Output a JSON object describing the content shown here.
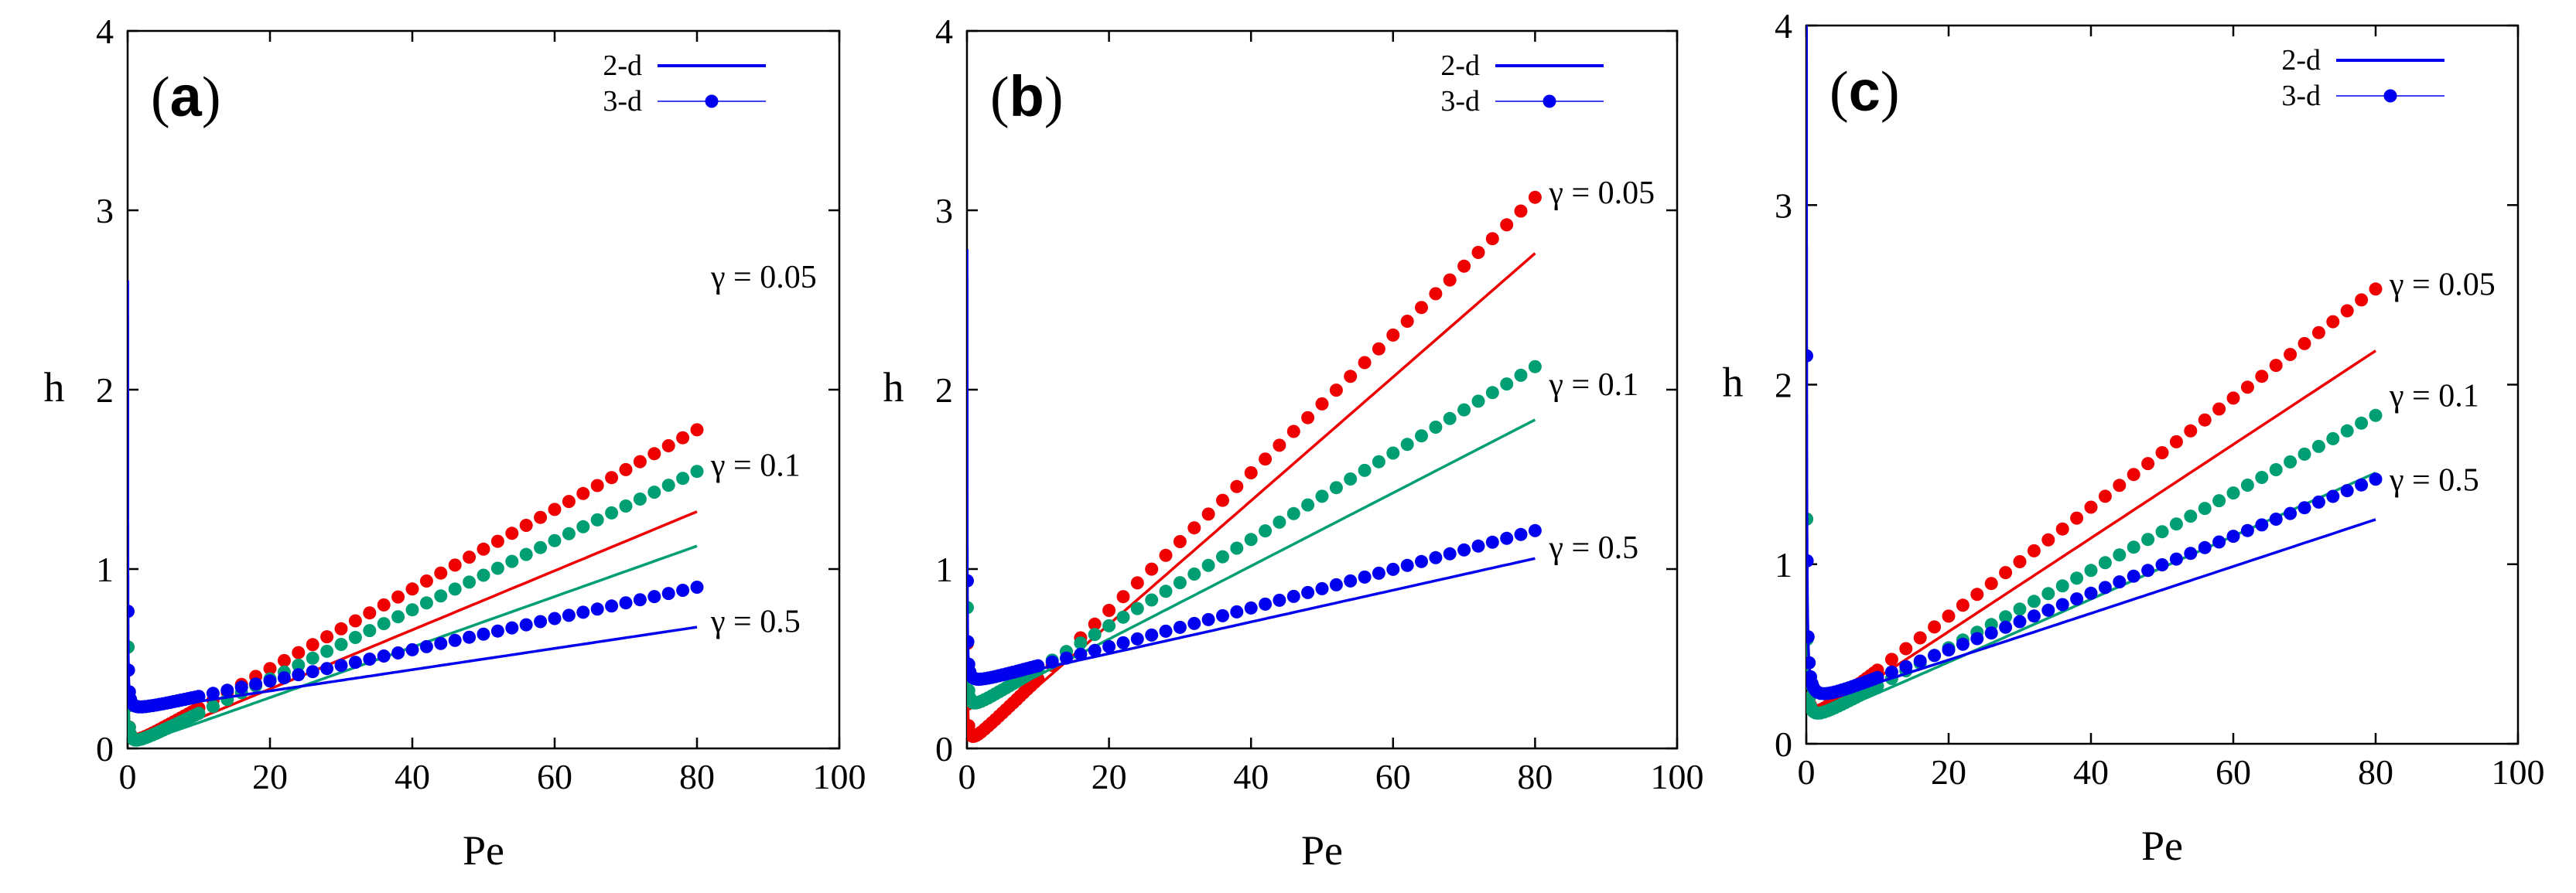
{
  "figure": {
    "colors": {
      "gamma_0_05": "#ee0000",
      "gamma_0_1": "#009e73",
      "gamma_0_5": "#0000ee",
      "axes": "#000000"
    }
  },
  "chart_data": [
    {
      "type": "line",
      "panel": "(a)",
      "panel_letter": "a",
      "xlabel": "Pe",
      "ylabel": "h",
      "xlim": [
        0,
        100
      ],
      "ylim": [
        0,
        4
      ],
      "xticks": [
        "0",
        "20",
        "40",
        "60",
        "80",
        "100"
      ],
      "yticks": [
        "0",
        "1",
        "2",
        "3",
        "4"
      ],
      "legend": {
        "position": "top-right",
        "entries": [
          "2-d",
          "3-d"
        ]
      },
      "series": [
        {
          "gamma": "0.05",
          "label": "γ = 0.05",
          "color": "#ee0000",
          "line": {
            "A": 0.0289,
            "B": 0.0,
            "C": 0.0165
          },
          "dots": {
            "A": 0.0282,
            "B": 0.0,
            "C": 0.0222
          }
        },
        {
          "gamma": "0.1",
          "label": "γ = 0.1",
          "color": "#009e73",
          "line": {
            "A": 0.0289,
            "B": 0.0,
            "C": 0.0141
          },
          "dots": {
            "A": 0.0282,
            "B": 0.0,
            "C": 0.0193
          }
        },
        {
          "gamma": "0.5",
          "label": "γ = 0.5",
          "color": "#0000ee",
          "line": {
            "A": 0.0289,
            "B": 0.2,
            "C": 0.00595
          },
          "dots": {
            "A": 0.0282,
            "B": 0.2,
            "C": 0.00873
          }
        }
      ],
      "gamma_label_y": {
        "0.05": 2.63,
        "0.1": 1.58,
        "0.5": 0.71
      }
    },
    {
      "type": "line",
      "panel": "(b)",
      "panel_letter": "b",
      "xlabel": "Pe",
      "ylabel": "h",
      "xlim": [
        0,
        100
      ],
      "ylim": [
        0,
        4
      ],
      "xticks": [
        "0",
        "20",
        "40",
        "60",
        "80",
        "100"
      ],
      "yticks": [
        "0",
        "1",
        "2",
        "3",
        "4"
      ],
      "legend": {
        "position": "top-right",
        "entries": [
          "2-d",
          "3-d"
        ]
      },
      "series": [
        {
          "gamma": "0.05",
          "label": "γ = 0.05",
          "color": "#ee0000",
          "line": {
            "A": 0.0292,
            "B": 0.0,
            "C": 0.0345
          },
          "dots": {
            "A": 0.0292,
            "B": 0.0,
            "C": 0.0384
          }
        },
        {
          "gamma": "0.1",
          "label": "γ = 0.1",
          "color": "#009e73",
          "line": {
            "A": 0.0292,
            "B": 0.2,
            "C": 0.0204
          },
          "dots": {
            "A": 0.0292,
            "B": 0.2,
            "C": 0.0241
          }
        },
        {
          "gamma": "0.5",
          "label": "γ = 0.5",
          "color": "#0000ee",
          "line": {
            "A": 0.0292,
            "B": 0.35,
            "C": 0.00886
          },
          "dots": {
            "A": 0.0292,
            "B": 0.35,
            "C": 0.0108
          }
        }
      ],
      "gamma_label_y": {
        "0.05": 3.1,
        "0.1": 2.03,
        "0.5": 1.12
      }
    },
    {
      "type": "line",
      "panel": "(c)",
      "panel_letter": "c",
      "xlabel": "Pe",
      "ylabel": "h",
      "xlim": [
        0,
        100
      ],
      "ylim": [
        0,
        4
      ],
      "xticks": [
        "0",
        "20",
        "40",
        "60",
        "80",
        "100"
      ],
      "yticks": [
        "0",
        "1",
        "2",
        "3",
        "4"
      ],
      "legend": {
        "position": "top-right",
        "entries": [
          "2-d",
          "3-d"
        ]
      },
      "series": [
        {
          "gamma": "0.05",
          "label": "γ = 0.05",
          "color": "#ee0000",
          "line": {
            "A": 0.0575,
            "B": 0.1,
            "C": 0.0261
          },
          "dots": {
            "A": 0.0575,
            "B": 0.1,
            "C": 0.0304
          }
        },
        {
          "gamma": "0.1",
          "label": "γ = 0.1",
          "color": "#009e73",
          "line": {
            "A": 0.0575,
            "B": 0.1,
            "C": 0.0176
          },
          "dots": {
            "A": 0.0575,
            "B": 0.1,
            "C": 0.0216
          }
        },
        {
          "gamma": "0.5",
          "label": "γ = 0.5",
          "color": "#0000ee",
          "line": {
            "A": 0.098,
            "B": 0.2,
            "C": 0.0131
          },
          "dots": {
            "A": 0.098,
            "B": 0.2,
            "C": 0.0159
          }
        }
      ],
      "gamma_label_y": {
        "0.05": 2.56,
        "0.1": 1.94,
        "0.5": 1.47
      }
    }
  ]
}
